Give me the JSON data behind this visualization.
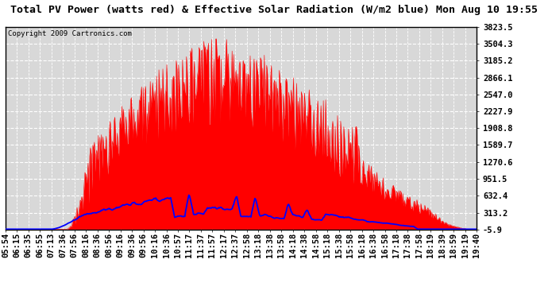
{
  "title": "Total PV Power (watts red) & Effective Solar Radiation (W/m2 blue) Mon Aug 10 19:55",
  "copyright": "Copyright 2009 Cartronics.com",
  "y_ticks": [
    3823.5,
    3504.3,
    3185.2,
    2866.1,
    2547.0,
    2227.9,
    1908.8,
    1589.7,
    1270.6,
    951.5,
    632.4,
    313.2,
    -5.9
  ],
  "x_labels": [
    "05:54",
    "06:15",
    "06:35",
    "06:55",
    "07:13",
    "07:36",
    "07:56",
    "08:16",
    "08:36",
    "08:56",
    "09:16",
    "09:36",
    "09:56",
    "10:16",
    "10:36",
    "10:57",
    "11:17",
    "11:37",
    "11:57",
    "12:17",
    "12:37",
    "12:58",
    "13:18",
    "13:38",
    "13:58",
    "14:18",
    "14:38",
    "14:58",
    "15:18",
    "15:38",
    "15:58",
    "16:18",
    "16:38",
    "16:58",
    "17:18",
    "17:38",
    "17:58",
    "18:19",
    "18:39",
    "18:59",
    "19:19",
    "19:40"
  ],
  "ylim_min": -5.9,
  "ylim_max": 3823.5,
  "bg_color": "#ffffff",
  "plot_bg_color": "#d8d8d8",
  "grid_color": "#ffffff",
  "red_color": "#ff0000",
  "blue_color": "#0000ff",
  "title_fontsize": 9.5,
  "copyright_fontsize": 6.5,
  "tick_fontsize": 7.5
}
